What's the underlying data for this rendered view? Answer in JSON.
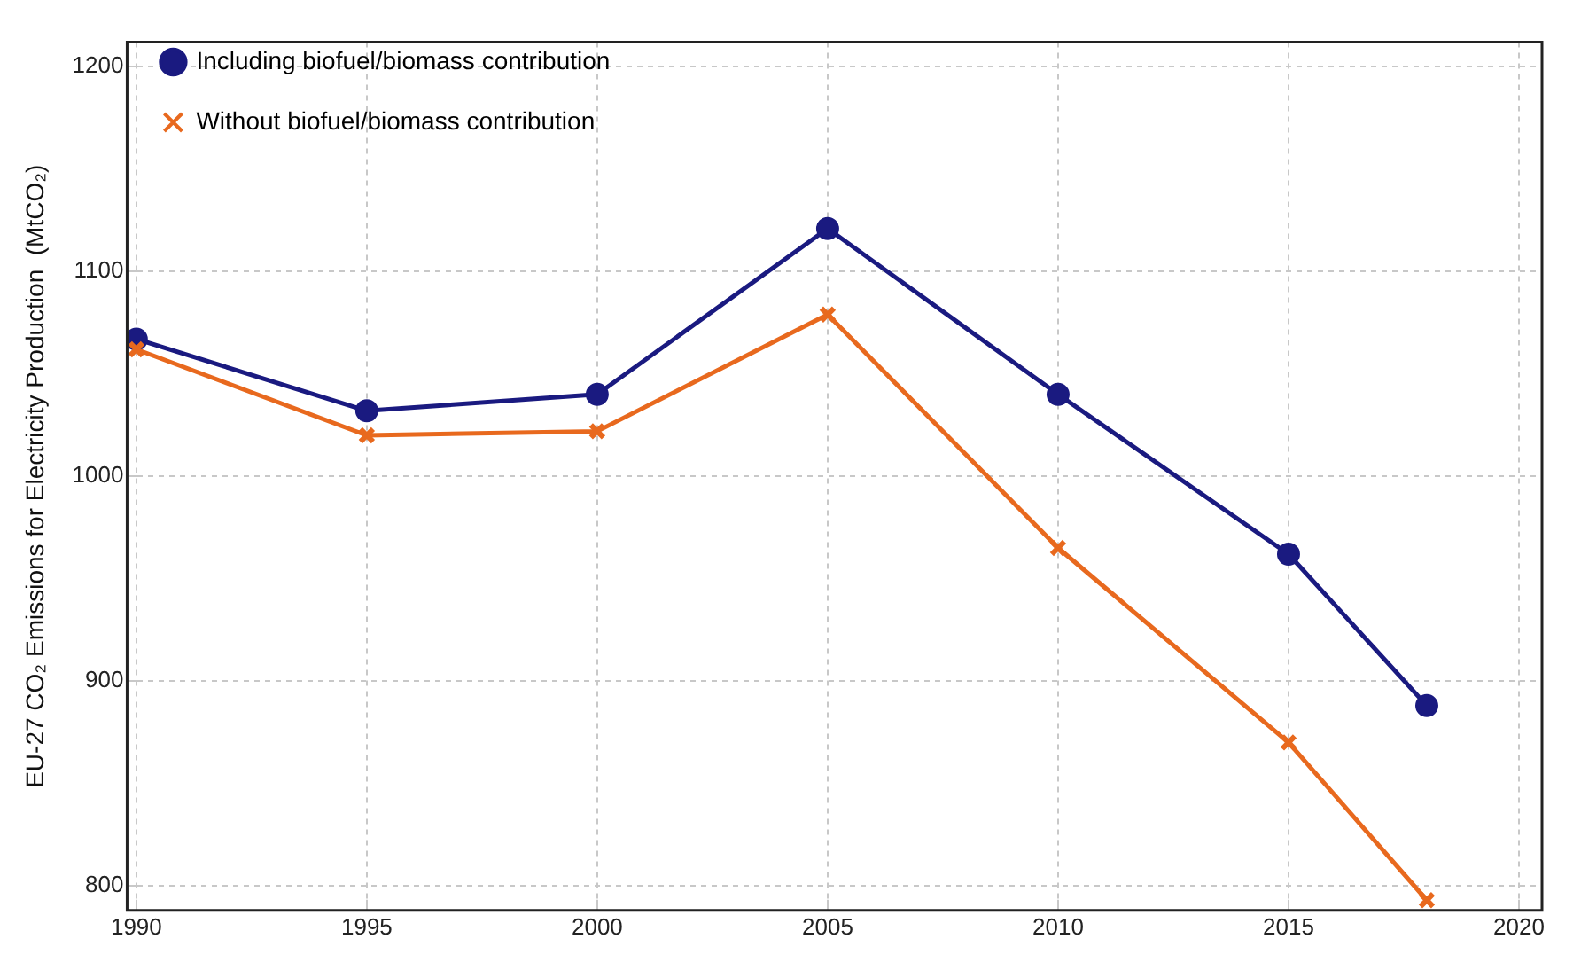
{
  "chart_data": {
    "type": "line",
    "ylabel": "EU-27 CO₂ Emissions for Electricity Production  (MtCO₂)",
    "x": [
      1990,
      1995,
      2000,
      2005,
      2010,
      2015,
      2018
    ],
    "series": [
      {
        "name": "Including biofuel/biomass contribution",
        "color": "#1a1a80",
        "marker": "circle",
        "values": [
          1067,
          1032,
          1040,
          1121,
          1040,
          962,
          888
        ]
      },
      {
        "name": "Without biofuel/biomass contribution",
        "color": "#e8691e",
        "marker": "cross",
        "values": [
          1062,
          1020,
          1022,
          1079,
          965,
          870,
          793
        ]
      }
    ],
    "xlim": [
      1989.8,
      2020.5
    ],
    "xticks": [
      1990,
      1995,
      2000,
      2005,
      2010,
      2015,
      2020
    ],
    "ylim": [
      788,
      1212
    ],
    "yticks": [
      800,
      900,
      1000,
      1100,
      1200
    ],
    "grid": true,
    "legend": "top left",
    "line_style": "solid"
  }
}
